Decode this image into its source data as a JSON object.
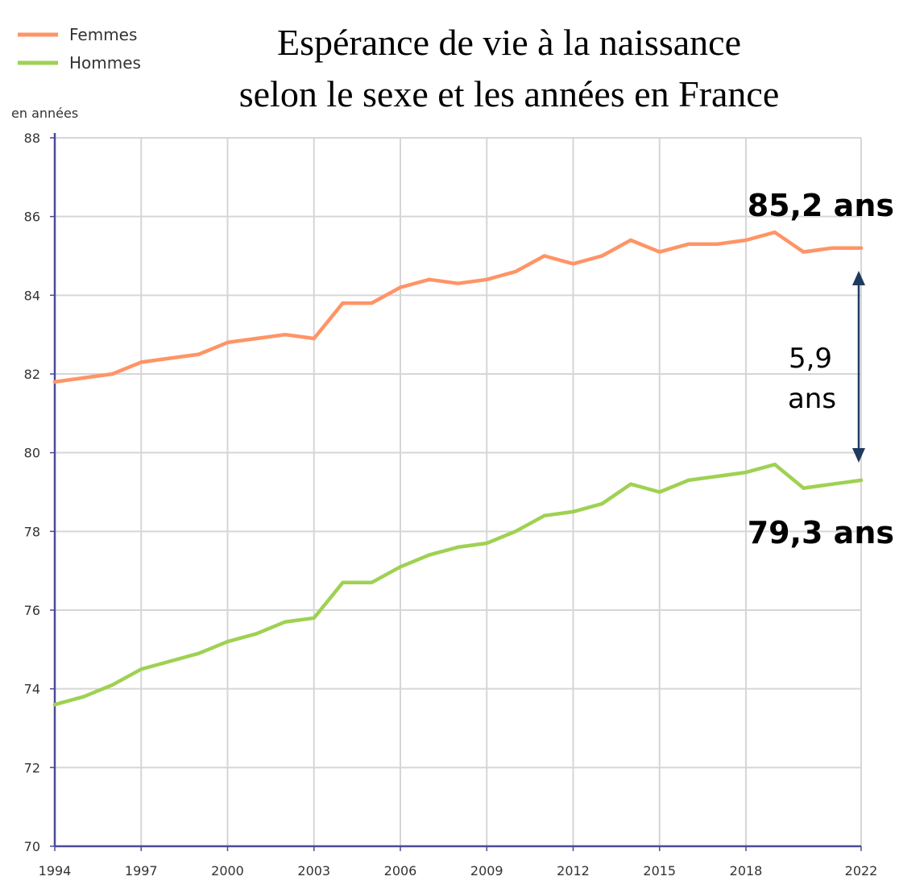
{
  "chart_data": {
    "type": "line",
    "title_lines": [
      "Espérance de vie à la naissance",
      "selon le sexe et les années en France"
    ],
    "ylabel": "en années",
    "xlabel": "",
    "ylim": [
      70,
      88
    ],
    "yticks": [
      70,
      72,
      74,
      76,
      78,
      80,
      82,
      84,
      86,
      88
    ],
    "xlim": [
      1994,
      2022
    ],
    "xticks": [
      1994,
      1997,
      2000,
      2003,
      2006,
      2009,
      2012,
      2015,
      2018,
      2022
    ],
    "grid": true,
    "legend_position": "top-left",
    "x": [
      1994,
      1995,
      1996,
      1997,
      1998,
      1999,
      2000,
      2001,
      2002,
      2003,
      2004,
      2005,
      2006,
      2007,
      2008,
      2009,
      2010,
      2011,
      2012,
      2013,
      2014,
      2015,
      2016,
      2017,
      2018,
      2019,
      2020,
      2021,
      2022
    ],
    "series": [
      {
        "name": "Femmes",
        "color": "#ff9466",
        "values": [
          81.8,
          81.9,
          82.0,
          82.3,
          82.4,
          82.5,
          82.8,
          82.9,
          83.0,
          82.9,
          83.8,
          83.8,
          84.2,
          84.4,
          84.3,
          84.4,
          84.6,
          85.0,
          84.8,
          85.0,
          85.4,
          85.1,
          85.3,
          85.3,
          85.4,
          85.6,
          85.1,
          85.2,
          85.2
        ]
      },
      {
        "name": "Hommes",
        "color": "#9fd152",
        "values": [
          73.6,
          73.8,
          74.1,
          74.5,
          74.7,
          74.9,
          75.2,
          75.4,
          75.7,
          75.8,
          76.7,
          76.7,
          77.1,
          77.4,
          77.6,
          77.7,
          78.0,
          78.4,
          78.5,
          78.7,
          79.2,
          79.0,
          79.3,
          79.4,
          79.5,
          79.7,
          79.1,
          79.2,
          79.3
        ]
      }
    ],
    "annotations": {
      "femmes_final": "85,2 ans",
      "hommes_final": "79,3 ans",
      "gap_value": "5,9",
      "gap_unit": "ans"
    },
    "colors": {
      "axis": "#4b4b9a",
      "grid": "#d6d6d6",
      "arrow": "#1f3a5f"
    }
  }
}
